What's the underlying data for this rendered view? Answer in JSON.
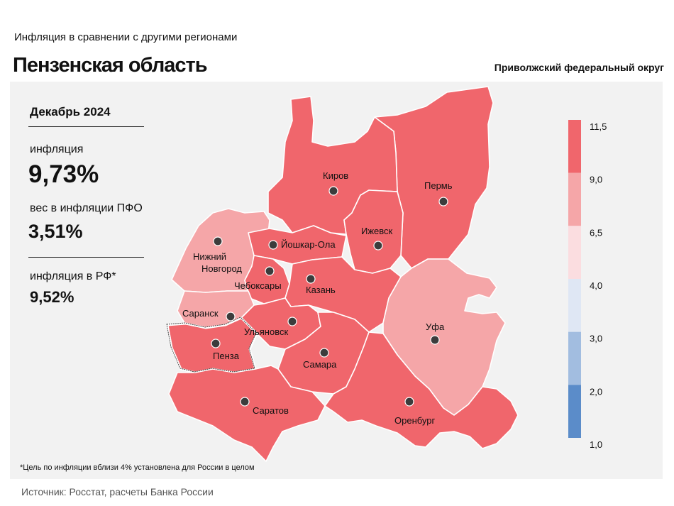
{
  "header": {
    "subtitle": "Инфляция  в сравнении  с другими  регионами",
    "title": "Пензенская область",
    "district": "Приволжский федеральный округ"
  },
  "stats": {
    "period": "Декабрь 2024",
    "inflation_label": "инфляция",
    "inflation_value": "9,73%",
    "weight_label": "вес в инфляции  ПФО",
    "weight_value": "3,51%",
    "rf_label": "инфляция  в РФ*",
    "rf_value": "9,52%"
  },
  "map": {
    "highlighted_region": "Пенза",
    "cities": [
      {
        "name": "Киров",
        "class": "9.0-11.5"
      },
      {
        "name": "Пермь",
        "class": "9.0-11.5"
      },
      {
        "name": "Нижний Новгород",
        "class": "6.5-9.0"
      },
      {
        "name": "Йошкар-Ола",
        "class": "9.0-11.5"
      },
      {
        "name": "Ижевск",
        "class": "9.0-11.5"
      },
      {
        "name": "Чебоксары",
        "class": "9.0-11.5"
      },
      {
        "name": "Казань",
        "class": "9.0-11.5"
      },
      {
        "name": "Саранск",
        "class": "6.5-9.0"
      },
      {
        "name": "Ульяновск",
        "class": "9.0-11.5"
      },
      {
        "name": "Уфа",
        "class": "6.5-9.0"
      },
      {
        "name": "Пенза",
        "class": "9.0-11.5"
      },
      {
        "name": "Самара",
        "class": "9.0-11.5"
      },
      {
        "name": "Саратов",
        "class": "9.0-11.5"
      },
      {
        "name": "Оренбург",
        "class": "9.0-11.5"
      }
    ],
    "colors": {
      "high": "#f0666c",
      "mid": "#f5a6a8",
      "border": "#ffffff",
      "dot": "#3c3c3c"
    }
  },
  "legend": {
    "ticks": [
      "11,5",
      "9,0",
      "6,5",
      "4,0",
      "3,0",
      "2,0",
      "1,0"
    ],
    "colors": [
      "#f0666c",
      "#f5a6a8",
      "#fbdde0",
      "#dfe7f4",
      "#a2bde0",
      "#5b8cc9"
    ]
  },
  "footnote": "*Цель по инфляции вблизи 4% установлена для России в целом",
  "source": "Источник: Росстат, расчеты Банка России"
}
